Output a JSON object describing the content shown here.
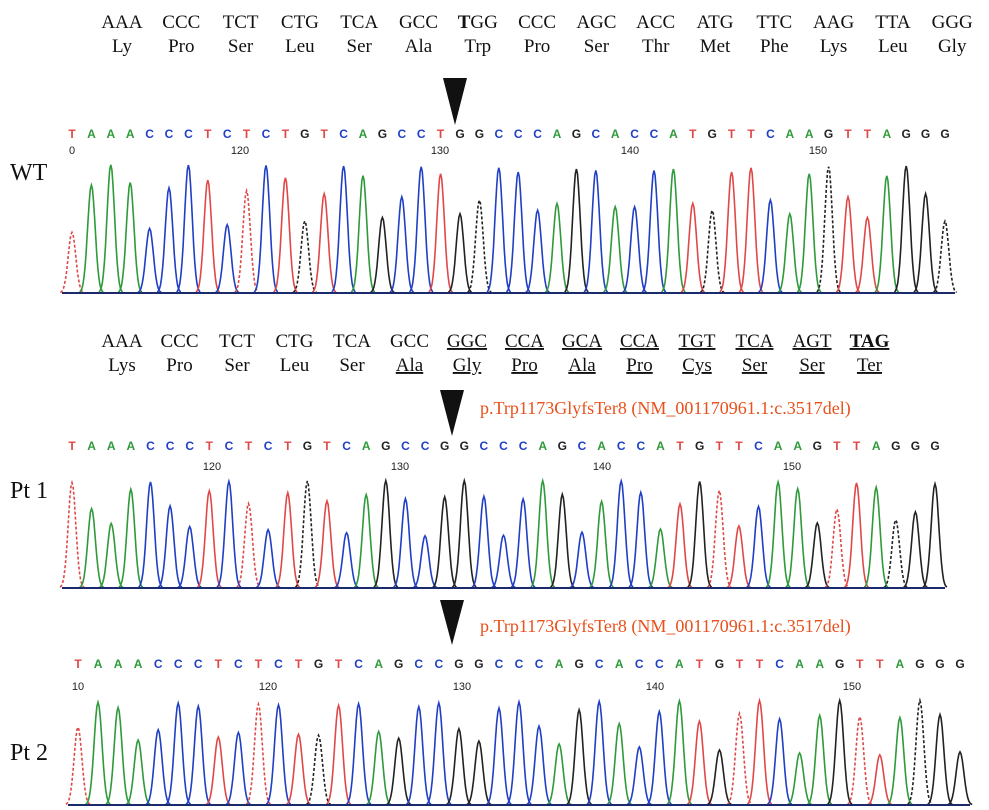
{
  "panels": [
    {
      "label": "WT",
      "codons": [
        "AAA",
        "CCC",
        "TCT",
        "CTG",
        "TCA",
        "GCC",
        {
          "bold": "T",
          "text": "GG"
        },
        "CCC",
        "AGC",
        "ACC",
        "ATG",
        "TTC",
        "AAG",
        "TTA",
        "GGG"
      ],
      "amino_acids": [
        "Ly",
        "Pro",
        "Ser",
        "Leu",
        "Ser",
        "Ala",
        "Trp",
        "Pro",
        "Ser",
        "Thr",
        "Met",
        "Phe",
        "Lys",
        "Leu",
        "Gly"
      ],
      "bases": "TAAACCCTCTCTGTCAGCCTGGCCCAGCACCATGTTCAAGTTAGGG",
      "positions": [
        "0",
        "120",
        "130",
        "140",
        "150"
      ]
    },
    {
      "label": "Pt 1",
      "codons": [
        "AAA",
        "CCC",
        "TCT",
        "CTG",
        "TCA",
        "GCC"
      ],
      "changed_codons": [
        "GGC",
        "CCA",
        "GCA",
        "CCA",
        "TGT",
        "TCA",
        "AGT"
      ],
      "stop_codon": "TAG",
      "amino_acids": [
        "Lys",
        "Pro",
        "Ser",
        "Leu",
        "Ser"
      ],
      "changed_amino_acids": [
        "Ala",
        "Gly",
        "Pro",
        "Ala",
        "Pro",
        "Cys",
        "Ser",
        "Ser",
        "Ter"
      ],
      "annotation": "p.Trp1173GlyfsTer8 (NM_001170961.1:c.3517del)",
      "bases": "TAAACCCTCTCTGTCAGCCGGCCCAGCACCATGTTCAAGTTAGGG",
      "positions": [
        "120",
        "130",
        "140",
        "150"
      ]
    },
    {
      "label": "Pt 2",
      "annotation": "p.Trp1173GlyfsTer8 (NM_001170961.1:c.3517del)",
      "bases": "TAAACCCTCTCTGTCAGCCGGCCCAGCACCATGTTCAAGTTAGGG",
      "positions": [
        "10",
        "120",
        "130",
        "140",
        "150"
      ]
    }
  ]
}
